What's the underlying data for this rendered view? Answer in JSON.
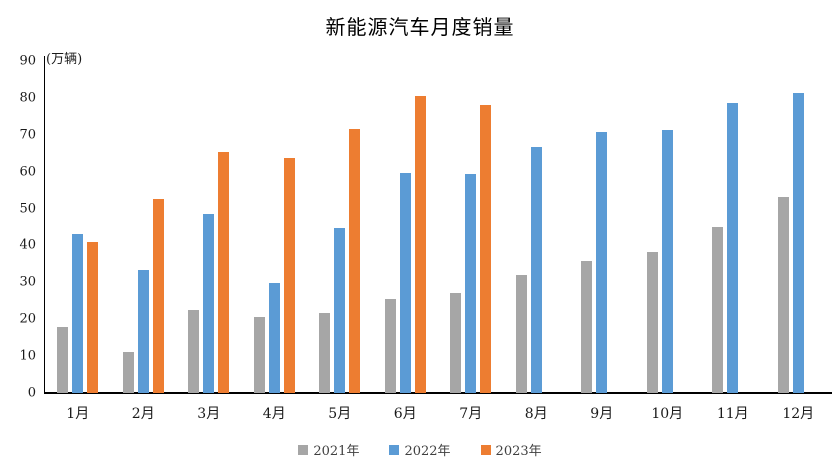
{
  "title": "新能源汽车月度销量",
  "unit_label": "(万辆)",
  "chart_data": {
    "type": "bar",
    "title": "新能源汽车月度销量",
    "ylabel": "(万辆)",
    "categories": [
      "1月",
      "2月",
      "3月",
      "4月",
      "5月",
      "6月",
      "7月",
      "8月",
      "9月",
      "10月",
      "11月",
      "12月"
    ],
    "series": [
      {
        "name": "2021年",
        "color": "#A6A6A6",
        "values": [
          17.9,
          11.0,
          22.6,
          20.6,
          21.7,
          25.6,
          27.1,
          32.1,
          35.7,
          38.3,
          45.0,
          53.1
        ]
      },
      {
        "name": "2022年",
        "color": "#5B9BD5",
        "values": [
          43.1,
          33.4,
          48.4,
          29.9,
          44.7,
          59.6,
          59.3,
          66.6,
          70.8,
          71.4,
          78.6,
          81.4
        ]
      },
      {
        "name": "2023年",
        "color": "#ED7D31",
        "values": [
          40.8,
          52.5,
          65.3,
          63.6,
          71.7,
          80.6,
          78.0,
          null,
          null,
          null,
          null,
          null
        ]
      }
    ],
    "ylim": [
      0,
      90
    ],
    "y_ticks": [
      0,
      10,
      20,
      30,
      40,
      50,
      60,
      70,
      80,
      90
    ],
    "grid": false,
    "legend_position": "bottom-center",
    "axis_color": "#000000"
  }
}
